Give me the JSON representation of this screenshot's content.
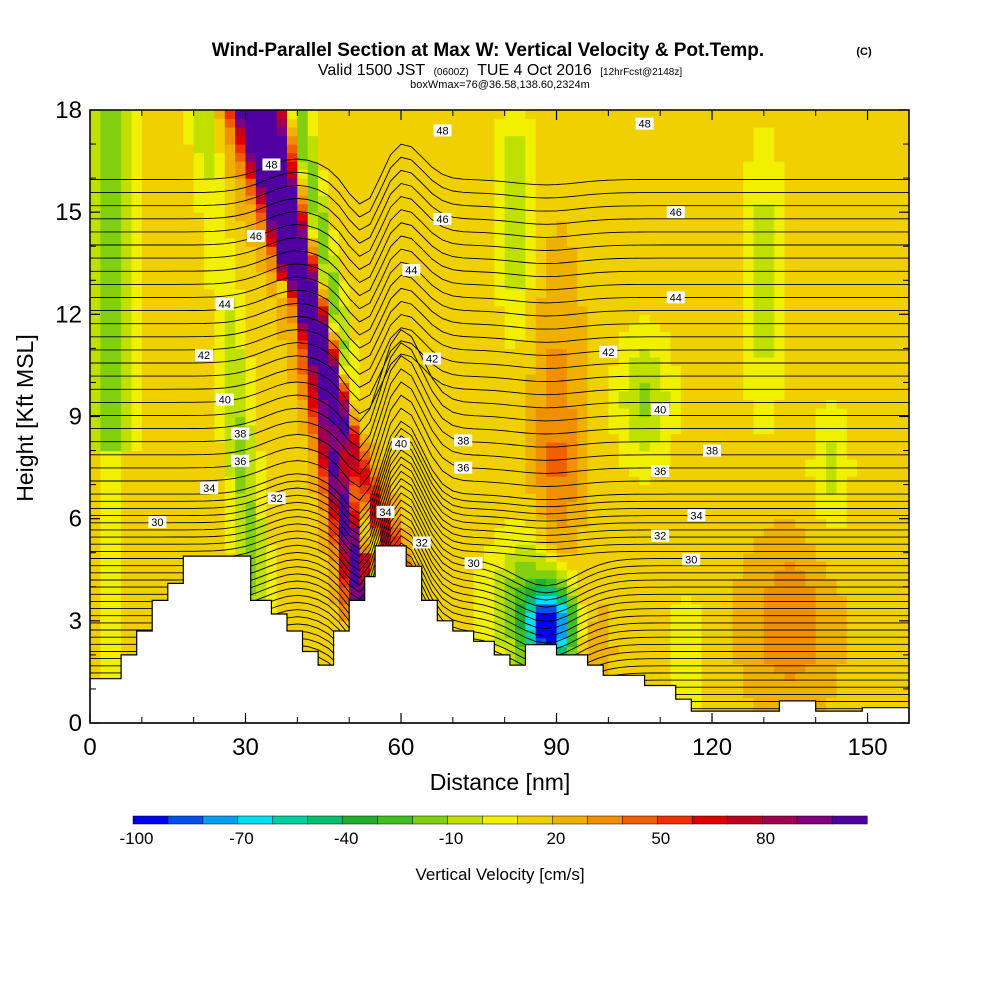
{
  "chart_data": {
    "type": "heatmap",
    "title": "Wind-Parallel Section at Max W: Vertical Velocity & Pot.Temp.",
    "title_mark": "(C)",
    "subtitle_parts": [
      "Valid 1500 JST",
      "(0600Z)",
      "TUE 4 Oct 2016",
      "[12hrFcst@2148z]"
    ],
    "subtitle2": "boxWmax=76@36.58,138.60,2324m",
    "xlabel": "Distance [nm]",
    "ylabel": "Height [Kft MSL]",
    "xlim": [
      0,
      158
    ],
    "ylim": [
      0,
      18
    ],
    "x_ticks": [
      "0",
      "30",
      "60",
      "90",
      "120",
      "150"
    ],
    "y_ticks": [
      "0",
      "3",
      "6",
      "9",
      "12",
      "15",
      "18"
    ],
    "colorbar": {
      "label": "Vertical Velocity [cm/s]",
      "tick_labels": [
        "-100",
        "-70",
        "-40",
        "-10",
        "20",
        "50",
        "80"
      ],
      "bin_colors": [
        "#0000f0",
        "#0050f0",
        "#00a0f0",
        "#00e0f0",
        "#00d0a0",
        "#00c070",
        "#20b030",
        "#40c020",
        "#80d010",
        "#c0e000",
        "#f0f000",
        "#f0d000",
        "#f0b000",
        "#f09000",
        "#f06000",
        "#f03000",
        "#e00000",
        "#c00020",
        "#a00050",
        "#800080",
        "#5000a0"
      ]
    },
    "theta_contour_labels": [
      {
        "value": "30",
        "x": 13,
        "y": 5.9
      },
      {
        "value": "34",
        "x": 23,
        "y": 6.9
      },
      {
        "value": "36",
        "x": 29,
        "y": 7.7
      },
      {
        "value": "38",
        "x": 29,
        "y": 8.5
      },
      {
        "value": "40",
        "x": 26,
        "y": 9.5
      },
      {
        "value": "42",
        "x": 22,
        "y": 10.8
      },
      {
        "value": "44",
        "x": 26,
        "y": 12.3
      },
      {
        "value": "46",
        "x": 32,
        "y": 14.3
      },
      {
        "value": "48",
        "x": 35,
        "y": 16.4
      },
      {
        "value": "32",
        "x": 36,
        "y": 6.6
      },
      {
        "value": "34",
        "x": 57,
        "y": 6.2
      },
      {
        "value": "40",
        "x": 60,
        "y": 8.2
      },
      {
        "value": "42",
        "x": 66,
        "y": 10.7
      },
      {
        "value": "44",
        "x": 62,
        "y": 13.3
      },
      {
        "value": "46",
        "x": 68,
        "y": 14.8
      },
      {
        "value": "48",
        "x": 68,
        "y": 17.4
      },
      {
        "value": "32",
        "x": 64,
        "y": 5.3
      },
      {
        "value": "30",
        "x": 74,
        "y": 4.7
      },
      {
        "value": "36",
        "x": 72,
        "y": 7.5
      },
      {
        "value": "38",
        "x": 72,
        "y": 8.3
      },
      {
        "value": "48",
        "x": 107,
        "y": 17.6
      },
      {
        "value": "46",
        "x": 113,
        "y": 15.0
      },
      {
        "value": "44",
        "x": 113,
        "y": 12.5
      },
      {
        "value": "42",
        "x": 100,
        "y": 10.9
      },
      {
        "value": "40",
        "x": 110,
        "y": 9.2
      },
      {
        "value": "38",
        "x": 120,
        "y": 8.0
      },
      {
        "value": "36",
        "x": 110,
        "y": 7.4
      },
      {
        "value": "34",
        "x": 117,
        "y": 6.1
      },
      {
        "value": "32",
        "x": 110,
        "y": 5.5
      },
      {
        "value": "30",
        "x": 116,
        "y": 4.8
      }
    ]
  }
}
